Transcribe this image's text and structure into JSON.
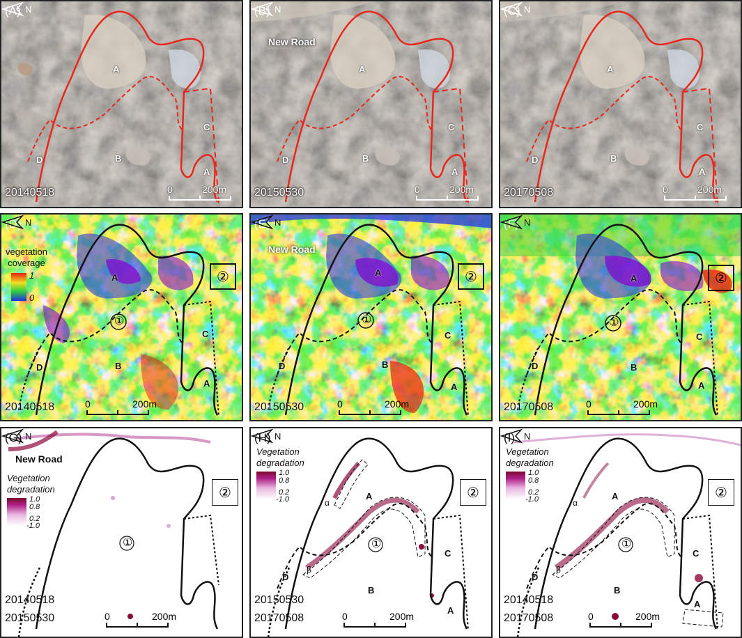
{
  "panels": [
    {
      "letter": "(A)",
      "date": "20140518",
      "road": "",
      "scale_zero": "0",
      "scale_len": "200m"
    },
    {
      "letter": "(B)",
      "date": "20150530",
      "road": "New Road",
      "scale_zero": "0",
      "scale_len": "200m"
    },
    {
      "letter": "(C)",
      "date": "20170508",
      "road": "",
      "scale_zero": "0",
      "scale_len": "200m"
    },
    {
      "letter": "(D)",
      "date": "20140518",
      "road": "",
      "scale_zero": "0",
      "scale_len": "200m"
    },
    {
      "letter": "(E)",
      "date": "20150530",
      "road": "New Road",
      "scale_zero": "0",
      "scale_len": "200m"
    },
    {
      "letter": "(F)",
      "date": "20170508",
      "road": "",
      "scale_zero": "0",
      "scale_len": "200m"
    },
    {
      "letter": "(G)",
      "date1": "20140518",
      "date2": "20150530",
      "road": "New Road",
      "scale_zero": "0",
      "scale_len": "200m"
    },
    {
      "letter": "(H)",
      "date1": "20150530",
      "date2": "20170508",
      "scale_zero": "0",
      "scale_len": "200m"
    },
    {
      "letter": "(I)",
      "date1": "20140518",
      "date2": "20170508",
      "scale_zero": "0",
      "scale_len": "200m"
    }
  ],
  "areas": {
    "a": "A",
    "b": "B",
    "c": "C",
    "d": "D"
  },
  "markers": {
    "one": "①",
    "two": "②",
    "alpha": "α",
    "beta": "β"
  },
  "north": "N",
  "legend_cov": {
    "title1": "vegetation",
    "title2": "coverage",
    "max": "1",
    "min": "0"
  },
  "legend_deg": {
    "title1": "Vegetation",
    "title2": "degradation",
    "v1": "1.0",
    "v2": "0.8",
    "v3": "0.2",
    "v4": "-1.0"
  },
  "colors": {
    "boundary_sat": "#e8261c",
    "boundary_dark": "#111111",
    "degradation": "#8b0a3c",
    "coverage_high": "#e82010",
    "coverage_mid": "#f0e020",
    "coverage_green": "#30d040",
    "coverage_low": "#2030e0",
    "coverage_min": "#8010d0"
  }
}
